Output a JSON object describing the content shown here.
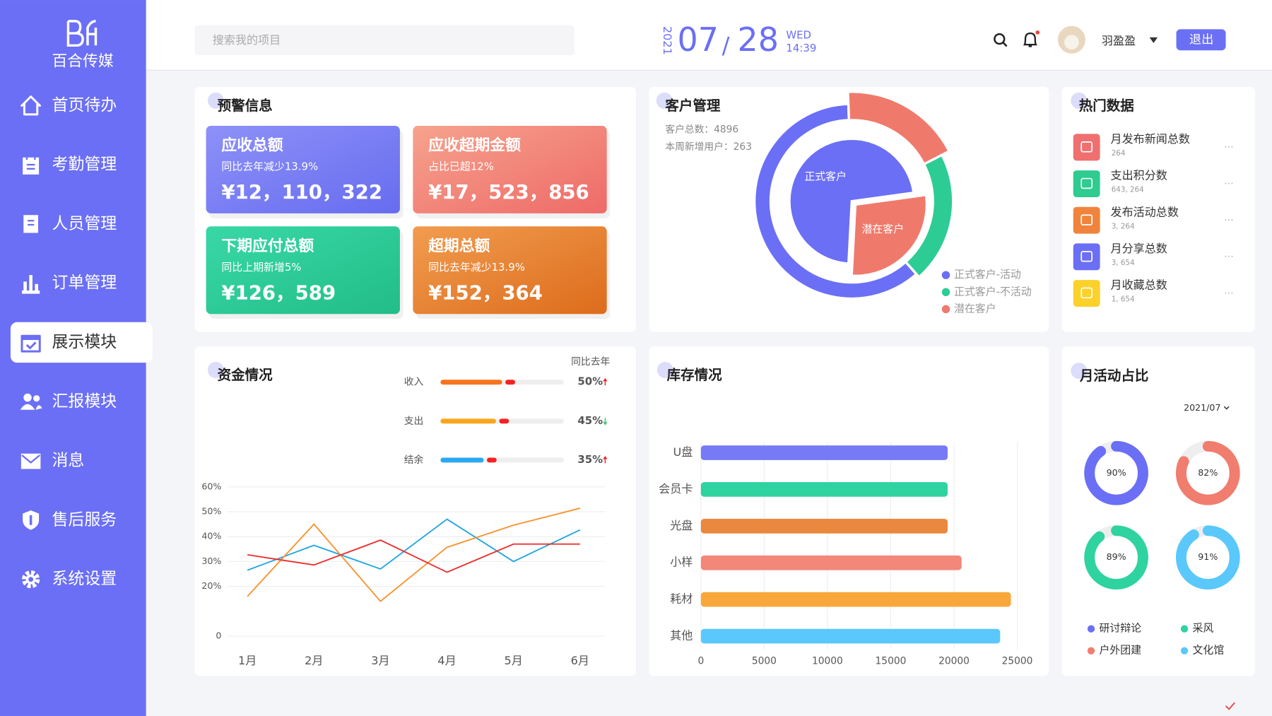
{
  "brand": {
    "name": "百合传媒"
  },
  "nav": {
    "items": [
      "首页待办",
      "考勤管理",
      "人员管理",
      "订单管理",
      "展示模块",
      "汇报模块",
      "消息",
      "售后服务",
      "系统设置"
    ],
    "active": 4
  },
  "header": {
    "search_placeholder": "搜索我的项目",
    "date": {
      "year": "2021",
      "month": "07",
      "separator": "/",
      "day": "28",
      "weekday": "WED",
      "time": "14:39"
    },
    "user": "羽盈盈",
    "logout": "退出"
  },
  "alerts": {
    "title": "预警信息",
    "cards": [
      {
        "title": "应收总额",
        "subtitle": "同比去年减少13.9%",
        "value": "¥12，110，322"
      },
      {
        "title": "应收超期金额",
        "subtitle": "占比已超12%",
        "value": "¥17，523，856"
      },
      {
        "title": "下期应付总额",
        "subtitle": "同比上期新增5%",
        "value": "¥126，589"
      },
      {
        "title": "超期总额",
        "subtitle": "同比去年减少13.9%",
        "value": "¥152，364"
      }
    ]
  },
  "customers": {
    "title": "客户管理",
    "total": "客户总数：4896",
    "new_this_week": "本周新增用户：263",
    "chart": {
      "type": "pie",
      "inner": {
        "categories": [
          "正式客户",
          "潜在客户"
        ],
        "values": [
          72,
          28
        ],
        "colors": [
          "#6b6ff5",
          "#ef7a6c"
        ]
      },
      "outer": {
        "categories": [
          "正式客户-活动",
          "正式客户-不活动",
          "潜在客户"
        ],
        "values": [
          61,
          21,
          18
        ],
        "colors": [
          "#6b6ff5",
          "#2ecc95",
          "#ef7a6c"
        ]
      }
    }
  },
  "hot": {
    "title": "热门数据",
    "items": [
      {
        "name": "月发布新闻总数",
        "value": "264"
      },
      {
        "name": "支出积分数",
        "value": "643, 264"
      },
      {
        "name": "发布活动总数",
        "value": "3, 264"
      },
      {
        "name": "月分享总数",
        "value": "3, 654"
      },
      {
        "name": "月收藏总数",
        "value": "1, 654"
      }
    ]
  },
  "funds": {
    "title": "资金情况",
    "comparison": {
      "header": "同比去年",
      "categories": [
        "收入",
        "支出",
        "结余"
      ],
      "values": [
        50,
        45,
        35
      ],
      "value_labels": [
        "50%",
        "45%",
        "35%"
      ],
      "trend": [
        "up",
        "down",
        "up"
      ],
      "colors": [
        "#f7741e",
        "#faa61a",
        "#2aa8f0"
      ]
    },
    "chart": {
      "type": "line",
      "categories": [
        "1月",
        "2月",
        "3月",
        "4月",
        "5月",
        "6月"
      ],
      "series": [
        {
          "color": "#1fa5e0",
          "values": [
            26.5,
            36.5,
            27,
            47,
            30,
            42.7
          ]
        },
        {
          "color": "#f7922e",
          "values": [
            16,
            45,
            14,
            35.7,
            44.6,
            51.4
          ]
        },
        {
          "color": "#ef2b2b",
          "values": [
            32.7,
            28.6,
            38.6,
            25.7,
            37,
            37
          ]
        }
      ],
      "ylim": [
        0,
        60
      ],
      "yticks": [
        0,
        {
          "value": 20,
          "label": "20%"
        },
        {
          "value": 30,
          "label": "30%"
        },
        {
          "value": 40,
          "label": "40%"
        },
        {
          "value": 50,
          "label": "50%"
        },
        {
          "value": 60,
          "label": "60%"
        }
      ],
      "grid": true
    }
  },
  "inventory": {
    "title": "库存情况",
    "chart": {
      "type": "bar",
      "orientation": "horizontal",
      "categories": [
        "U盘",
        "会员卡",
        "光盘",
        "小样",
        "耗材",
        "其他"
      ],
      "values": [
        19500,
        19500,
        19500,
        20600,
        24500,
        23650
      ],
      "colors": [
        "#767af5",
        "#2ed3a0",
        "#e9883e",
        "#f2877a",
        "#f8a83a",
        "#5ac8fa"
      ],
      "xlim": [
        0,
        25000
      ],
      "xticks": [
        0,
        5000,
        10000,
        15000,
        20000,
        25000
      ],
      "grid": true
    }
  },
  "monthly": {
    "title": "月活动占比",
    "period": "2021/07",
    "chart": {
      "type": "donut",
      "categories": [
        "研讨辩论",
        "户外团建",
        "采风",
        "文化馆"
      ],
      "values": [
        90,
        82,
        89,
        91
      ],
      "value_labels": [
        "90%",
        "82%",
        "89%",
        "91%"
      ],
      "colors": [
        "#6b6ff5",
        "#f07d6e",
        "#2ed3a0",
        "#5ac8fa"
      ]
    }
  }
}
